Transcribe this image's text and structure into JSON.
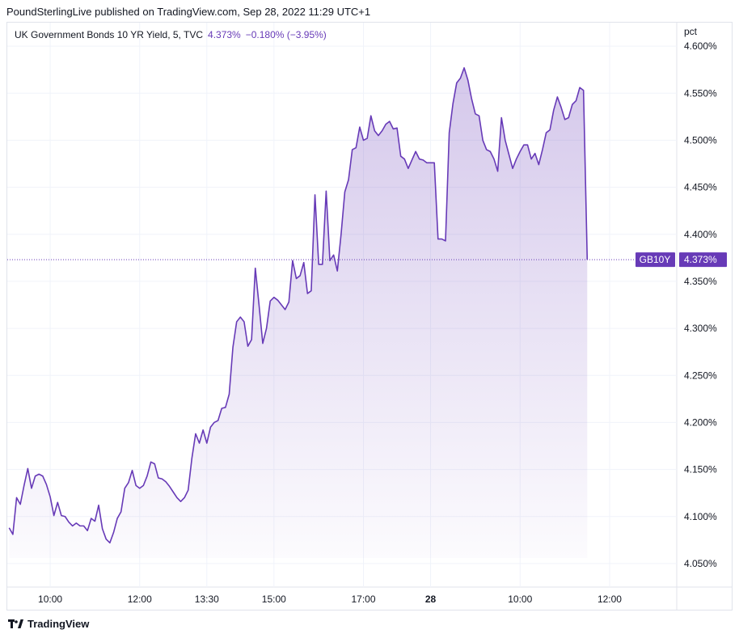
{
  "header": {
    "published_text": "PoundSterlingLive published on TradingView.com, Sep 28, 2022 11:29 UTC+1"
  },
  "legend": {
    "symbol_text": "UK Government Bonds 10 YR Yield, 5, TVC",
    "last_value": "4.373%",
    "change": "−0.180% (−3.95%)"
  },
  "price_tags": {
    "symbol": "GB10Y",
    "value": "4.373%"
  },
  "footer": {
    "brand": "TradingView",
    "logo_icon": "tradingview-logo-icon"
  },
  "colors": {
    "line": "#673ab7",
    "tag": "#673ab7",
    "grid": "#f0f3fa"
  },
  "chart_data": {
    "type": "area",
    "ylabel": "pct",
    "ylim": [
      4.025,
      4.625
    ],
    "y_ticks": [
      "4.600%",
      "4.550%",
      "4.500%",
      "4.450%",
      "4.400%",
      "4.350%",
      "4.300%",
      "4.250%",
      "4.200%",
      "4.150%",
      "4.100%",
      "4.050%"
    ],
    "y_tick_values": [
      4.6,
      4.55,
      4.5,
      4.45,
      4.4,
      4.35,
      4.3,
      4.25,
      4.2,
      4.15,
      4.1,
      4.05
    ],
    "x_ticks": [
      {
        "label": "10:00",
        "index": 11,
        "bold": false
      },
      {
        "label": "12:00",
        "index": 35,
        "bold": false
      },
      {
        "label": "13:30",
        "index": 53,
        "bold": false
      },
      {
        "label": "15:00",
        "index": 71,
        "bold": false
      },
      {
        "label": "17:00",
        "index": 95,
        "bold": false
      },
      {
        "label": "28",
        "index": 113,
        "bold": true
      },
      {
        "label": "10:00",
        "index": 137,
        "bold": false
      },
      {
        "label": "12:00",
        "index": 161,
        "bold": false
      }
    ],
    "x_range": [
      -0.5,
      179
    ],
    "last_value": 4.373,
    "series": [
      {
        "values": [
          4.088,
          4.081,
          4.12,
          4.113,
          4.133,
          4.151,
          4.13,
          4.143,
          4.145,
          4.143,
          4.134,
          4.121,
          4.101,
          4.115,
          4.101,
          4.1,
          4.094,
          4.09,
          4.093,
          4.09,
          4.09,
          4.085,
          4.098,
          4.095,
          4.112,
          4.087,
          4.076,
          4.072,
          4.083,
          4.098,
          4.105,
          4.13,
          4.136,
          4.149,
          4.133,
          4.13,
          4.133,
          4.143,
          4.158,
          4.156,
          4.141,
          4.14,
          4.137,
          4.132,
          4.126,
          4.12,
          4.116,
          4.12,
          4.128,
          4.162,
          4.188,
          4.178,
          4.192,
          4.178,
          4.195,
          4.2,
          4.202,
          4.215,
          4.216,
          4.23,
          4.28,
          4.307,
          4.312,
          4.307,
          4.281,
          4.288,
          4.364,
          4.325,
          4.284,
          4.3,
          4.329,
          4.333,
          4.33,
          4.325,
          4.32,
          4.328,
          4.372,
          4.353,
          4.356,
          4.37,
          4.337,
          4.34,
          4.442,
          4.368,
          4.368,
          4.446,
          4.372,
          4.378,
          4.361,
          4.4,
          4.445,
          4.458,
          4.49,
          4.492,
          4.514,
          4.5,
          4.502,
          4.526,
          4.51,
          4.505,
          4.51,
          4.517,
          4.52,
          4.512,
          4.513,
          4.483,
          4.48,
          4.47,
          4.479,
          4.488,
          4.48,
          4.479,
          4.476,
          4.476,
          4.476,
          4.395,
          4.395,
          4.393,
          4.508,
          4.539,
          4.561,
          4.566,
          4.577,
          4.564,
          4.544,
          4.528,
          4.526,
          4.5,
          4.49,
          4.488,
          4.48,
          4.467,
          4.524,
          4.5,
          4.485,
          4.47,
          4.48,
          4.488,
          4.495,
          4.495,
          4.48,
          4.486,
          4.474,
          4.49,
          4.508,
          4.511,
          4.532,
          4.546,
          4.535,
          4.522,
          4.524,
          4.538,
          4.542,
          4.556,
          4.553,
          4.373
        ]
      }
    ]
  }
}
